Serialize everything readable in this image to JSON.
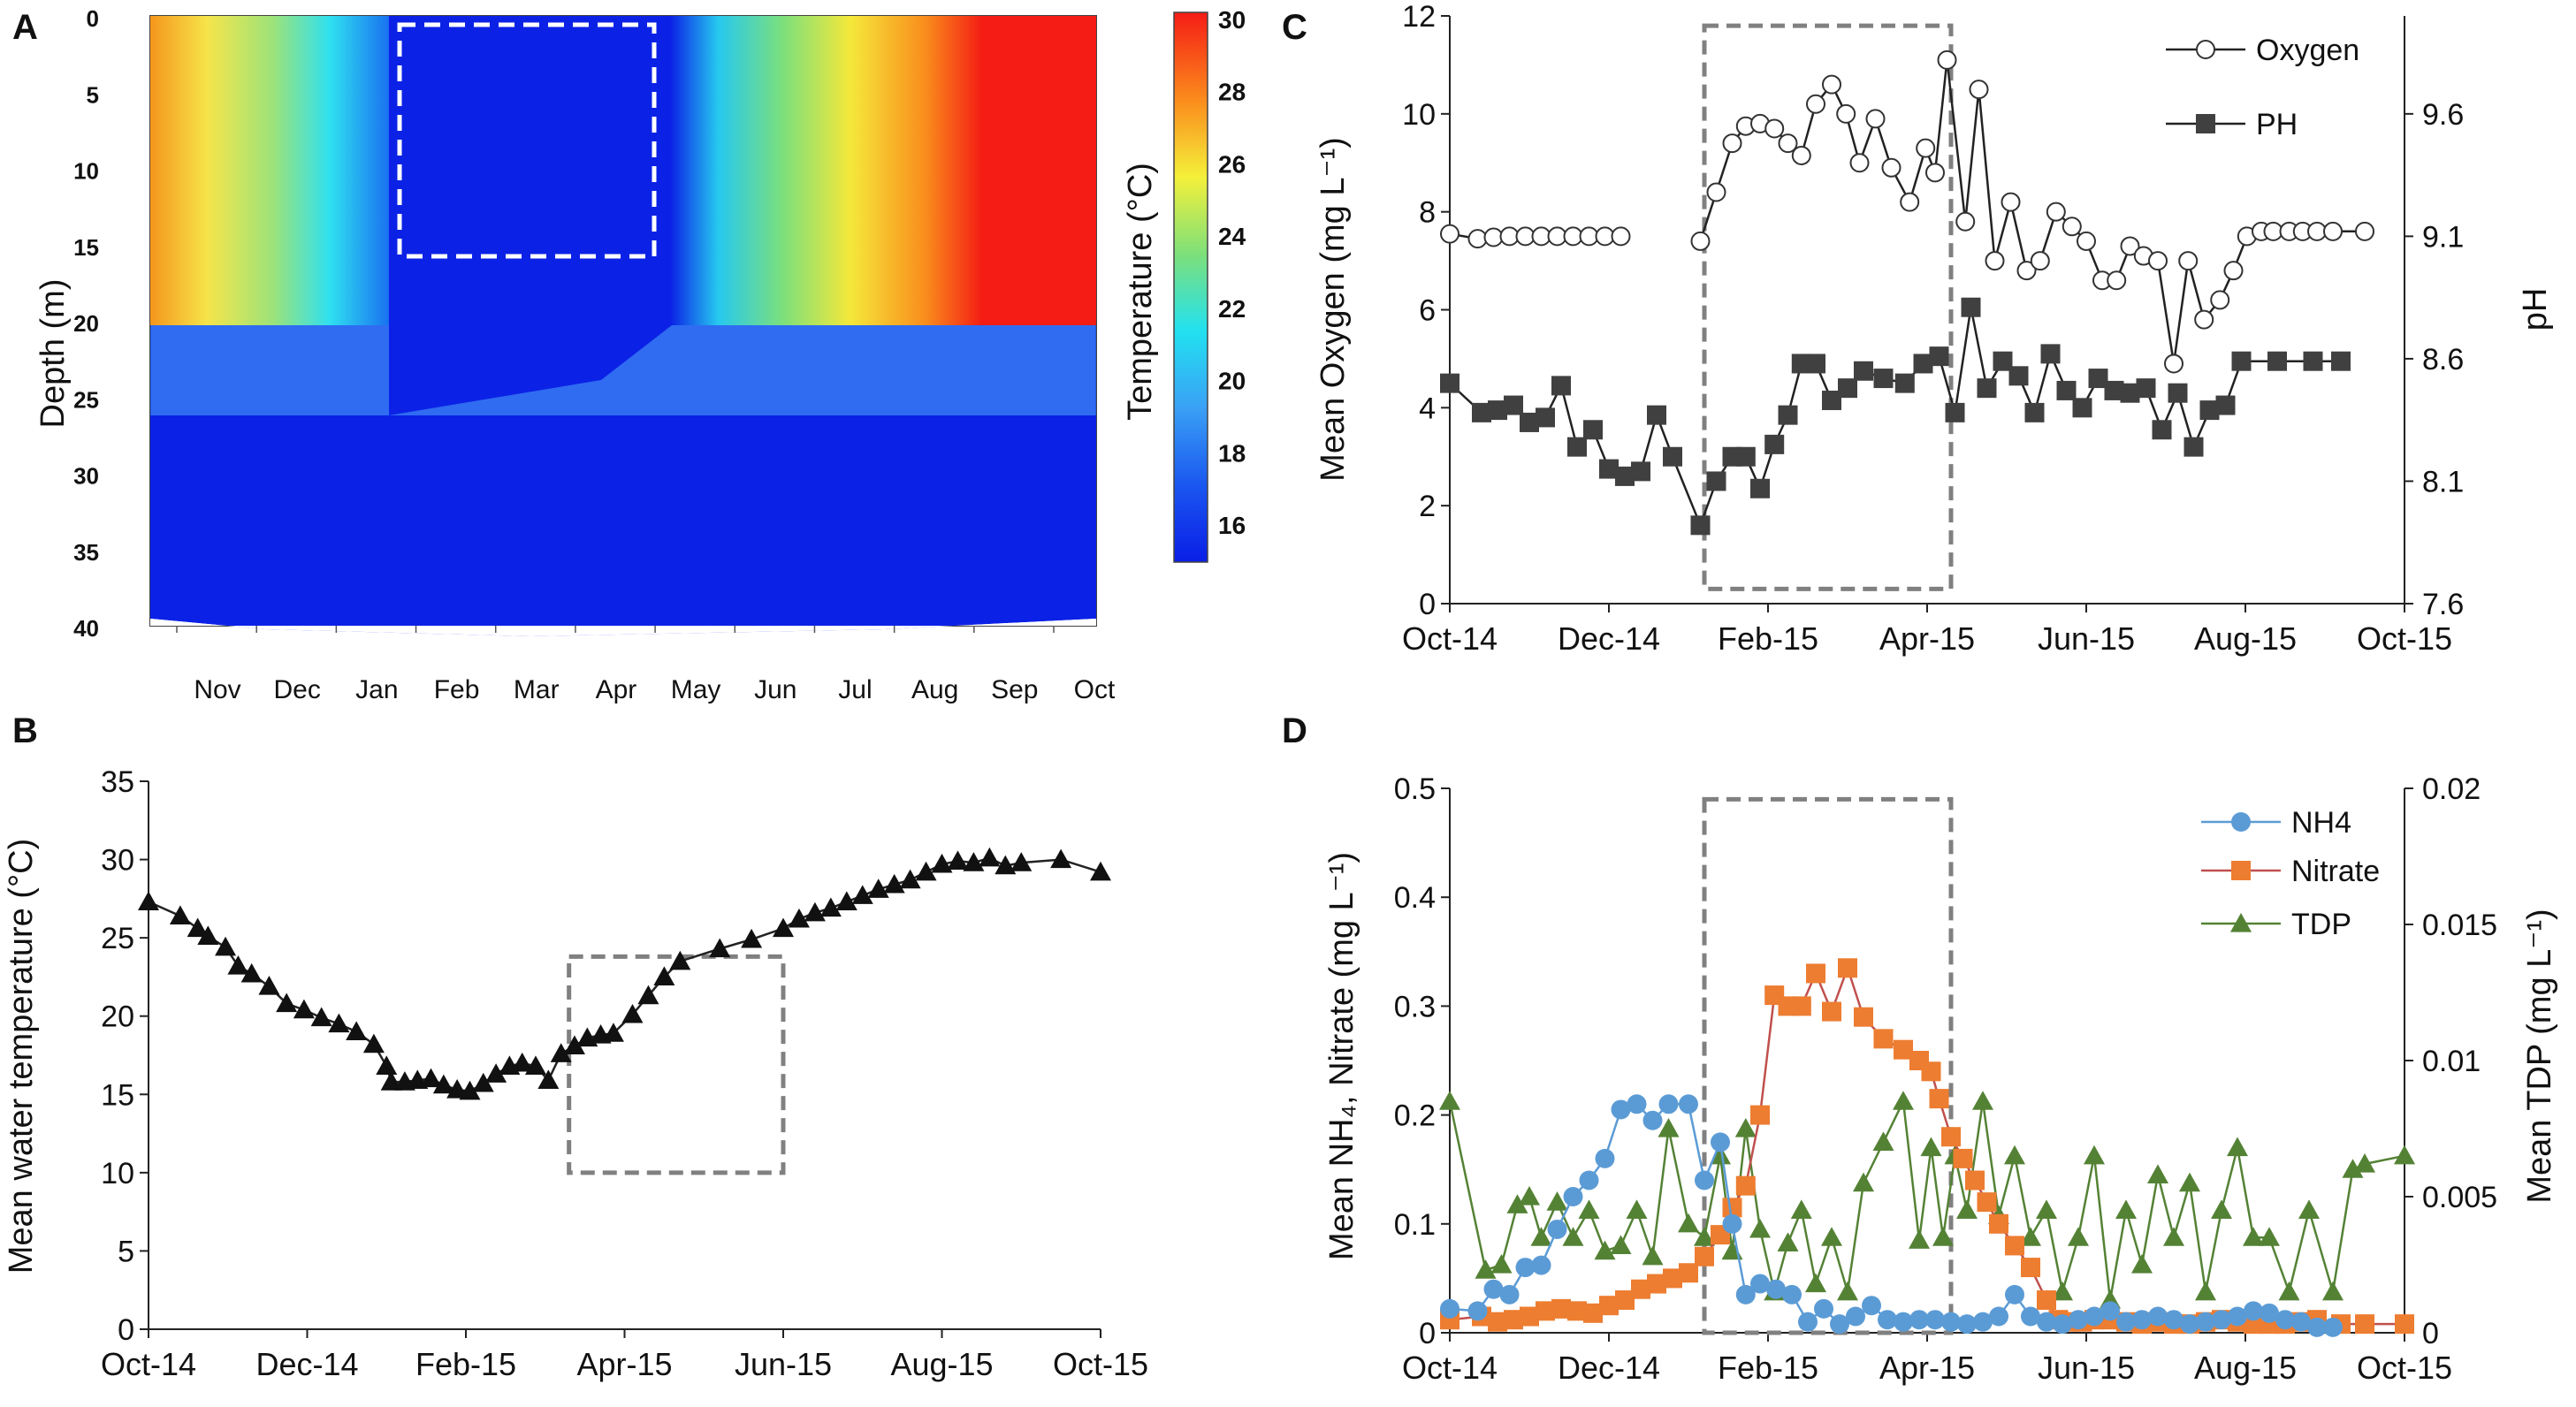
{
  "colors": {
    "dashed_box_gray": "#808080",
    "heat_white_box": "#ffffff",
    "oxygen": "#111111",
    "ph": "#404040",
    "nh4": "#5b9bd5",
    "nitrate": "#ed7d31",
    "nitrate_line": "#c0504d",
    "tdp": "#548235"
  },
  "chart_data": [
    {
      "panel": "A",
      "type": "heatmap",
      "ylabel": "Depth (m)",
      "colorbar_label": "Temperature (°C)",
      "colorbar_ticks": [
        "30",
        "28",
        "26",
        "24",
        "22",
        "20",
        "18",
        "16"
      ],
      "y_ticks": [
        "0",
        "5",
        "10",
        "15",
        "20",
        "25",
        "30",
        "35",
        "40"
      ],
      "x_ticks": [
        "Nov",
        "Dec",
        "Jan",
        "Feb",
        "Mar",
        "Apr",
        "May",
        "Jun",
        "Jul",
        "Aug",
        "Sep",
        "Oct"
      ],
      "ylim": [
        0,
        40
      ],
      "highlight_box": {
        "from": "Jan",
        "to": "Apr",
        "depth": [
          0,
          15
        ]
      }
    },
    {
      "panel": "B",
      "type": "line",
      "ylabel": "Mean water temperature (°C)",
      "y_ticks": [
        "0",
        "5",
        "10",
        "15",
        "20",
        "25",
        "30",
        "35"
      ],
      "x_ticks": [
        "Oct-14",
        "Dec-14",
        "Feb-15",
        "Apr-15",
        "Jun-15",
        "Aug-15",
        "Oct-15"
      ],
      "ylim": [
        0,
        35
      ],
      "xlim": [
        0,
        12
      ],
      "highlight_box": {
        "x": [
          5.3,
          8.0
        ],
        "y": [
          10,
          23.8
        ]
      },
      "series": [
        {
          "name": "Temperature",
          "marker": "triangle",
          "x": [
            0,
            0.4,
            0.62,
            0.75,
            0.97,
            1.13,
            1.3,
            1.52,
            1.74,
            1.96,
            2.18,
            2.4,
            2.62,
            2.84,
            3.0,
            3.06,
            3.23,
            3.39,
            3.56,
            3.72,
            3.89,
            4.05,
            4.22,
            4.38,
            4.55,
            4.71,
            4.88,
            5.04,
            5.2,
            5.37,
            5.53,
            5.7,
            5.86,
            6.1,
            6.3,
            6.5,
            6.7,
            7.2,
            7.6,
            8.0,
            8.2,
            8.4,
            8.6,
            8.8,
            9.0,
            9.2,
            9.4,
            9.6,
            9.8,
            10.0,
            10.2,
            10.4,
            10.6,
            10.8,
            11.0,
            11.5,
            12.0
          ],
          "y": [
            27.3,
            26.4,
            25.6,
            25.1,
            24.4,
            23.2,
            22.7,
            21.9,
            20.8,
            20.4,
            19.9,
            19.5,
            19.0,
            18.2,
            16.8,
            15.8,
            15.8,
            15.9,
            16.0,
            15.6,
            15.3,
            15.2,
            15.7,
            16.3,
            16.8,
            17.0,
            16.8,
            15.9,
            17.6,
            18.1,
            18.6,
            18.8,
            18.9,
            20.1,
            21.3,
            22.5,
            23.5,
            24.3,
            24.9,
            25.6,
            26.2,
            26.6,
            26.9,
            27.3,
            27.7,
            28.1,
            28.4,
            28.7,
            29.2,
            29.7,
            29.9,
            29.8,
            30.1,
            29.6,
            29.8,
            30.0,
            29.2
          ]
        }
      ]
    },
    {
      "panel": "C",
      "type": "line",
      "ylabel": "Mean Oxygen (mg L⁻¹)",
      "y2label": "pH",
      "y_ticks": [
        "0",
        "2",
        "4",
        "6",
        "8",
        "10",
        "12"
      ],
      "y2_ticks": [
        "7.6",
        "8.1",
        "8.6",
        "9.1",
        "9.6"
      ],
      "x_ticks": [
        "Oct-14",
        "Dec-14",
        "Feb-15",
        "Apr-15",
        "Jun-15",
        "Aug-15",
        "Oct-15"
      ],
      "ylim": [
        0,
        12
      ],
      "y2lim": [
        7.6,
        10.0
      ],
      "xlim": [
        0,
        12
      ],
      "highlight_box": {
        "x": [
          3.2,
          6.3
        ],
        "y": [
          0.3,
          11.8
        ]
      },
      "legend": [
        "Oxygen",
        "PH"
      ],
      "series": [
        {
          "name": "Oxygen",
          "marker": "open-circle",
          "axis": "left",
          "segments": [
            {
              "x": [
                0,
                0.35,
                0.55,
                0.75,
                0.95,
                1.15,
                1.35,
                1.55,
                1.75,
                1.95,
                2.15
              ],
              "y": [
                7.55,
                7.45,
                7.48,
                7.5,
                7.5,
                7.5,
                7.5,
                7.5,
                7.5,
                7.5,
                7.5
              ]
            },
            {
              "x": [
                3.15,
                3.35,
                3.55,
                3.72,
                3.9,
                4.08,
                4.25,
                4.42,
                4.6,
                4.8,
                4.98,
                5.15,
                5.35,
                5.55,
                5.78,
                5.98,
                6.1,
                6.25,
                6.48,
                6.65,
                6.85,
                7.05,
                7.25,
                7.42,
                7.62,
                7.82,
                8.0,
                8.2,
                8.38,
                8.55,
                8.72,
                8.9,
                9.1,
                9.28,
                9.48,
                9.68,
                9.85,
                10.02,
                10.2,
                10.35,
                10.55,
                10.72,
                10.9,
                11.1,
                11.5
              ],
              "y": [
                7.4,
                8.4,
                9.4,
                9.75,
                9.8,
                9.7,
                9.4,
                9.15,
                10.2,
                10.6,
                10.0,
                9.0,
                9.9,
                8.9,
                8.2,
                9.3,
                8.8,
                11.1,
                7.8,
                10.5,
                7.0,
                8.2,
                6.8,
                7.0,
                8.0,
                7.7,
                7.4,
                6.6,
                6.6,
                7.3,
                7.1,
                7.0,
                4.9,
                7.0,
                5.8,
                6.2,
                6.8,
                7.5,
                7.6,
                7.6,
                7.6,
                7.6,
                7.6,
                7.6,
                7.6
              ]
            }
          ]
        },
        {
          "name": "PH",
          "marker": "filled-square",
          "axis": "right",
          "x": [
            0,
            0.4,
            0.6,
            0.8,
            1.0,
            1.2,
            1.4,
            1.6,
            1.8,
            2.0,
            2.2,
            2.4,
            2.6,
            2.8,
            3.15,
            3.35,
            3.55,
            3.72,
            3.9,
            4.08,
            4.25,
            4.42,
            4.6,
            4.8,
            5.0,
            5.2,
            5.45,
            5.72,
            5.95,
            6.15,
            6.35,
            6.55,
            6.75,
            6.95,
            7.15,
            7.35,
            7.55,
            7.75,
            7.95,
            8.15,
            8.35,
            8.55,
            8.75,
            8.95,
            9.15,
            9.35,
            9.55,
            9.75,
            9.95,
            10.4,
            10.85,
            11.2
          ],
          "y": [
            8.5,
            8.38,
            8.39,
            8.41,
            8.34,
            8.36,
            8.49,
            8.24,
            8.31,
            8.15,
            8.12,
            8.14,
            8.37,
            8.2,
            7.92,
            8.1,
            8.2,
            8.2,
            8.07,
            8.25,
            8.37,
            8.58,
            8.58,
            8.43,
            8.48,
            8.55,
            8.52,
            8.5,
            8.58,
            8.61,
            8.38,
            8.81,
            8.48,
            8.59,
            8.53,
            8.38,
            8.62,
            8.47,
            8.4,
            8.52,
            8.47,
            8.46,
            8.48,
            8.31,
            8.46,
            8.24,
            8.39,
            8.41,
            8.59,
            8.59,
            8.59,
            8.59
          ]
        }
      ]
    },
    {
      "panel": "D",
      "type": "line",
      "ylabel": "Mean NH₄, Nitrate (mg L⁻¹)",
      "y2label": "Mean TDP (mg L⁻¹)",
      "y_ticks": [
        "0",
        "0.1",
        "0.2",
        "0.3",
        "0.4",
        "0.5"
      ],
      "y2_ticks": [
        "0",
        "0.005",
        "0.01",
        "0.015",
        "0.02"
      ],
      "x_ticks": [
        "Oct-14",
        "Dec-14",
        "Feb-15",
        "Apr-15",
        "Jun-15",
        "Aug-15",
        "Oct-15"
      ],
      "ylim": [
        0,
        0.5
      ],
      "y2lim": [
        0,
        0.02
      ],
      "xlim": [
        0,
        12
      ],
      "highlight_box": {
        "x": [
          3.2,
          6.3
        ],
        "y": [
          0,
          0.49
        ]
      },
      "legend": [
        "NH4",
        "Nitrate",
        "TDP"
      ],
      "series": [
        {
          "name": "NH4",
          "marker": "circle",
          "axis": "left",
          "x": [
            0,
            0.35,
            0.55,
            0.75,
            0.95,
            1.15,
            1.35,
            1.55,
            1.75,
            1.95,
            2.15,
            2.35,
            2.55,
            2.75,
            3.0,
            3.2,
            3.4,
            3.55,
            3.72,
            3.9,
            4.1,
            4.3,
            4.5,
            4.7,
            4.9,
            5.1,
            5.3,
            5.5,
            5.7,
            5.9,
            6.1,
            6.3,
            6.5,
            6.7,
            6.9,
            7.1,
            7.3,
            7.5,
            7.7,
            7.9,
            8.1,
            8.3,
            8.5,
            8.7,
            8.9,
            9.1,
            9.3,
            9.5,
            9.7,
            9.9,
            10.1,
            10.3,
            10.5,
            10.7,
            10.9,
            11.1
          ],
          "y": [
            0.022,
            0.02,
            0.04,
            0.035,
            0.06,
            0.062,
            0.095,
            0.125,
            0.14,
            0.16,
            0.205,
            0.21,
            0.195,
            0.21,
            0.21,
            0.14,
            0.175,
            0.1,
            0.035,
            0.045,
            0.04,
            0.035,
            0.01,
            0.022,
            0.008,
            0.015,
            0.025,
            0.012,
            0.01,
            0.012,
            0.012,
            0.01,
            0.008,
            0.01,
            0.015,
            0.035,
            0.015,
            0.01,
            0.008,
            0.012,
            0.015,
            0.02,
            0.01,
            0.012,
            0.015,
            0.012,
            0.008,
            0.01,
            0.012,
            0.015,
            0.02,
            0.018,
            0.012,
            0.01,
            0.005,
            0.005
          ]
        },
        {
          "name": "Nitrate",
          "marker": "square",
          "axis": "left",
          "x": [
            0,
            0.4,
            0.6,
            0.8,
            1.0,
            1.2,
            1.4,
            1.6,
            1.8,
            2.0,
            2.2,
            2.4,
            2.6,
            2.8,
            3.0,
            3.2,
            3.4,
            3.55,
            3.72,
            3.9,
            4.08,
            4.25,
            4.42,
            4.6,
            4.8,
            5.0,
            5.2,
            5.45,
            5.7,
            5.9,
            6.05,
            6.15,
            6.3,
            6.45,
            6.6,
            6.75,
            6.9,
            7.1,
            7.3,
            7.5,
            7.65,
            7.8,
            7.95,
            8.1,
            8.3,
            8.5,
            8.7,
            8.9,
            9.1,
            9.3,
            9.5,
            9.7,
            9.9,
            10.1,
            10.3,
            10.5,
            10.7,
            10.9,
            11.2,
            11.5,
            12.0
          ],
          "y": [
            0.012,
            0.015,
            0.01,
            0.012,
            0.015,
            0.02,
            0.022,
            0.02,
            0.018,
            0.025,
            0.03,
            0.04,
            0.045,
            0.05,
            0.055,
            0.07,
            0.09,
            0.115,
            0.135,
            0.2,
            0.31,
            0.3,
            0.3,
            0.33,
            0.295,
            0.335,
            0.29,
            0.27,
            0.26,
            0.25,
            0.24,
            0.215,
            0.18,
            0.16,
            0.14,
            0.12,
            0.1,
            0.08,
            0.06,
            0.03,
            0.012,
            0.01,
            0.01,
            0.012,
            0.012,
            0.01,
            0.008,
            0.01,
            0.008,
            0.008,
            0.01,
            0.012,
            0.01,
            0.008,
            0.008,
            0.008,
            0.01,
            0.012,
            0.008,
            0.008,
            0.008
          ]
        },
        {
          "name": "TDP",
          "marker": "triangle",
          "axis": "right",
          "x": [
            0,
            0.45,
            0.65,
            0.85,
            1.0,
            1.15,
            1.35,
            1.55,
            1.75,
            1.95,
            2.15,
            2.35,
            2.55,
            2.75,
            3.0,
            3.2,
            3.4,
            3.55,
            3.72,
            3.9,
            4.08,
            4.25,
            4.42,
            4.6,
            4.8,
            5.0,
            5.2,
            5.45,
            5.7,
            5.9,
            6.05,
            6.2,
            6.35,
            6.5,
            6.7,
            6.9,
            7.1,
            7.3,
            7.5,
            7.7,
            7.9,
            8.1,
            8.3,
            8.5,
            8.7,
            8.9,
            9.1,
            9.3,
            9.5,
            9.7,
            9.9,
            10.1,
            10.3,
            10.55,
            10.8,
            11.1,
            11.35,
            11.5,
            12.0
          ],
          "y": [
            0.0085,
            0.0023,
            0.0025,
            0.0047,
            0.005,
            0.0035,
            0.0048,
            0.0035,
            0.0045,
            0.003,
            0.0032,
            0.0045,
            0.0028,
            0.0075,
            0.004,
            0.0035,
            0.0065,
            0.003,
            0.0075,
            0.0038,
            0.0015,
            0.0033,
            0.0045,
            0.0018,
            0.0035,
            0.0015,
            0.0055,
            0.007,
            0.0085,
            0.0034,
            0.0068,
            0.0035,
            0.0065,
            0.0045,
            0.0085,
            0.0043,
            0.0065,
            0.0035,
            0.0045,
            0.0015,
            0.0035,
            0.0065,
            0.0012,
            0.0045,
            0.0025,
            0.0058,
            0.0035,
            0.0055,
            0.0015,
            0.0045,
            0.0068,
            0.0035,
            0.0035,
            0.0015,
            0.0045,
            0.0015,
            0.006,
            0.0062,
            0.0065
          ]
        }
      ]
    }
  ]
}
